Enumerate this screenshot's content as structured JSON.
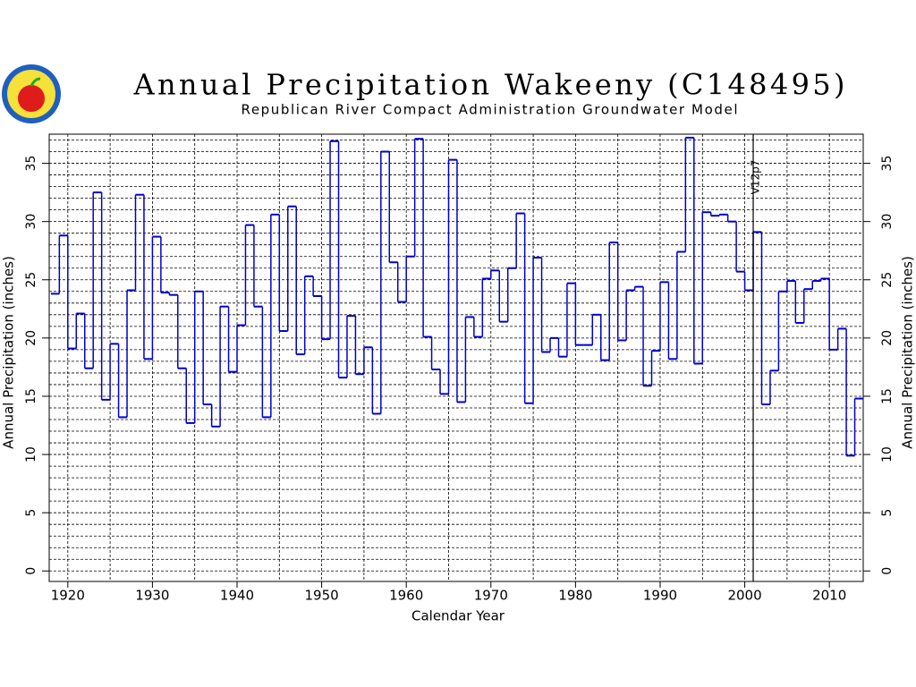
{
  "chart_data": {
    "type": "step",
    "title": "Annual Precipitation Wakeeny (C148495)",
    "subtitle": "Republican River Compact Administration Groundwater Model",
    "x_label": "Calendar Year",
    "y_label": "Annual Precipitation (inches)",
    "y2_label": "Annual Precipitation (inches)",
    "x": [
      1918,
      1919,
      1920,
      1921,
      1922,
      1923,
      1924,
      1925,
      1926,
      1927,
      1928,
      1929,
      1930,
      1931,
      1932,
      1933,
      1934,
      1935,
      1936,
      1937,
      1938,
      1939,
      1940,
      1941,
      1942,
      1943,
      1944,
      1945,
      1946,
      1947,
      1948,
      1949,
      1950,
      1951,
      1952,
      1953,
      1954,
      1955,
      1956,
      1957,
      1958,
      1959,
      1960,
      1961,
      1962,
      1963,
      1964,
      1965,
      1966,
      1967,
      1968,
      1969,
      1970,
      1971,
      1972,
      1973,
      1974,
      1975,
      1976,
      1977,
      1978,
      1979,
      1980,
      1981,
      1982,
      1983,
      1984,
      1985,
      1986,
      1987,
      1988,
      1989,
      1990,
      1991,
      1992,
      1993,
      1994,
      1995,
      1996,
      1997,
      1998,
      1999,
      2000,
      2001,
      2002,
      2003,
      2004,
      2005,
      2006,
      2007,
      2008,
      2009,
      2010,
      2011,
      2012,
      2013
    ],
    "series": [
      {
        "name": "Annual Precipitation",
        "color": "#0000cc",
        "values": [
          23.8,
          28.8,
          19.1,
          22.1,
          17.4,
          32.5,
          14.7,
          19.5,
          13.2,
          24.1,
          32.3,
          18.2,
          28.7,
          23.9,
          23.7,
          17.4,
          12.7,
          24.0,
          14.3,
          12.4,
          22.7,
          17.1,
          21.1,
          29.7,
          22.7,
          13.2,
          30.6,
          20.6,
          31.3,
          18.6,
          25.3,
          23.6,
          19.9,
          36.9,
          16.6,
          21.9,
          16.9,
          19.2,
          13.5,
          36.0,
          26.5,
          23.1,
          27.0,
          37.1,
          20.1,
          17.3,
          15.2,
          35.3,
          14.5,
          21.8,
          20.1,
          25.1,
          25.8,
          21.4,
          26.0,
          30.7,
          14.4,
          26.9,
          18.8,
          20.0,
          18.4,
          24.7,
          19.4,
          19.4,
          22.0,
          18.1,
          28.2,
          19.8,
          24.1,
          24.4,
          15.9,
          18.9,
          24.8,
          18.2,
          27.4,
          37.2,
          17.8,
          30.8,
          30.5,
          30.6,
          30.0,
          25.7,
          24.1,
          29.1,
          14.3,
          17.2,
          24.0,
          24.9,
          21.3,
          24.2,
          24.9,
          25.1,
          19.0,
          20.8,
          9.9,
          14.8
        ]
      }
    ],
    "xlim": [
      1917.8,
      2014
    ],
    "xticks": [
      1920,
      1930,
      1940,
      1950,
      1960,
      1970,
      1980,
      1990,
      2000,
      2010
    ],
    "ylim": [
      -0.9,
      37.5
    ],
    "yticks": [
      0,
      5,
      10,
      15,
      20,
      25,
      30,
      35
    ],
    "y2lim": [
      -0.9,
      37.5
    ],
    "y2ticks": [
      0,
      5,
      10,
      15,
      20,
      25,
      30,
      35
    ],
    "grid": true,
    "annotations": [
      {
        "x": 2001,
        "label": "V12p7"
      }
    ]
  }
}
